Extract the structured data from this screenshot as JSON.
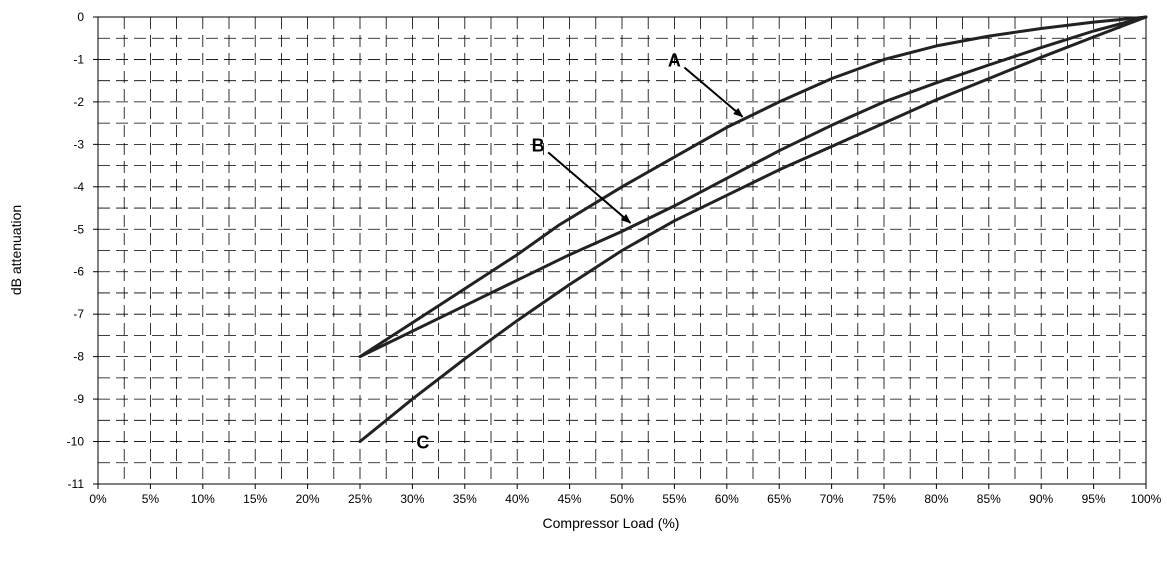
{
  "chart_data": {
    "type": "line",
    "title": "",
    "xlabel": "Compressor Load (%)",
    "ylabel": "dB attenuation",
    "xlim": [
      0,
      100
    ],
    "ylim": [
      -11,
      0
    ],
    "x_ticks": [
      0,
      5,
      10,
      15,
      20,
      25,
      30,
      35,
      40,
      45,
      50,
      55,
      60,
      65,
      70,
      75,
      80,
      85,
      90,
      95,
      100
    ],
    "x_tick_labels": [
      "0%",
      "5%",
      "10%",
      "15%",
      "20%",
      "25%",
      "30%",
      "35%",
      "40%",
      "45%",
      "50%",
      "55%",
      "60%",
      "65%",
      "70%",
      "75%",
      "80%",
      "85%",
      "90%",
      "95%",
      "100%"
    ],
    "y_ticks": [
      0,
      -1,
      -2,
      -3,
      -4,
      -5,
      -6,
      -7,
      -8,
      -9,
      -10,
      -11
    ],
    "y_tick_labels": [
      "0",
      "-1",
      "-2",
      "-3",
      "-4",
      "-5",
      "-6",
      "-7",
      "-8",
      "-9",
      "-10",
      "-11"
    ],
    "grid": true,
    "legend": "none",
    "line_color": "#222222",
    "series": [
      {
        "name": "A",
        "x": [
          25,
          30,
          35,
          40,
          44,
          50,
          55,
          60,
          65,
          70,
          75,
          80,
          85,
          90,
          95,
          100
        ],
        "y": [
          -8,
          -7.2,
          -6.4,
          -5.6,
          -4.9,
          -4.0,
          -3.3,
          -2.6,
          -2.0,
          -1.45,
          -1.0,
          -0.68,
          -0.45,
          -0.27,
          -0.12,
          0
        ]
      },
      {
        "name": "B",
        "x": [
          25,
          30,
          35,
          40,
          45,
          50,
          55,
          60,
          65,
          70,
          75,
          80,
          85,
          90,
          95,
          100
        ],
        "y": [
          -8,
          -7.4,
          -6.8,
          -6.2,
          -5.6,
          -5.05,
          -4.45,
          -3.8,
          -3.15,
          -2.55,
          -2.0,
          -1.55,
          -1.13,
          -0.72,
          -0.33,
          0
        ]
      },
      {
        "name": "C",
        "x": [
          25,
          30,
          35,
          40,
          45,
          50,
          55,
          60,
          65,
          70,
          75,
          80,
          85,
          90,
          95,
          100
        ],
        "y": [
          -10,
          -9.0,
          -8.05,
          -7.15,
          -6.3,
          -5.5,
          -4.8,
          -4.2,
          -3.6,
          -3.05,
          -2.5,
          -1.95,
          -1.45,
          -0.95,
          -0.47,
          0
        ]
      }
    ],
    "annotations": [
      {
        "label": "A",
        "text_at": [
          55,
          -1.0
        ],
        "arrow_to": [
          61.5,
          -2.35
        ]
      },
      {
        "label": "B",
        "text_at": [
          42,
          -3.0
        ],
        "arrow_to": [
          50.8,
          -4.85
        ]
      },
      {
        "label": "C",
        "text_at": [
          31,
          -10
        ],
        "arrow_to": null
      }
    ]
  }
}
